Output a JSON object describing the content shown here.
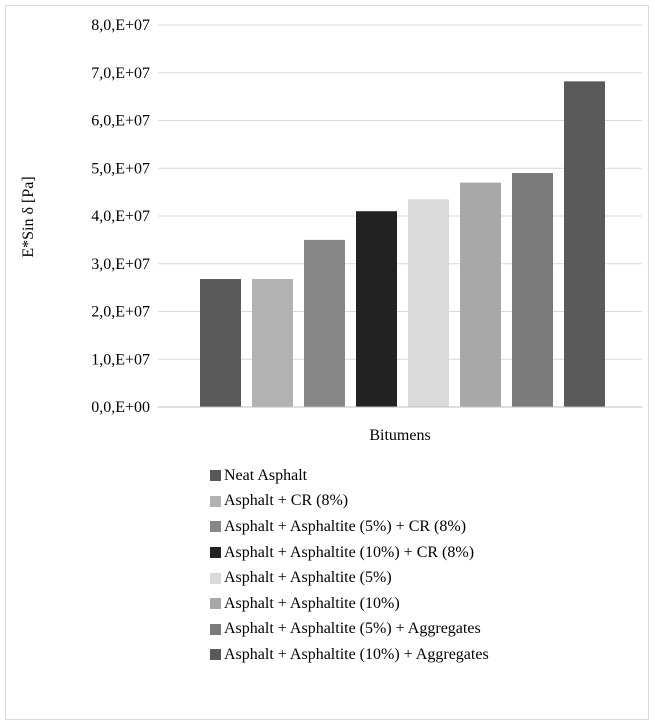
{
  "chart_data": {
    "type": "bar",
    "categories": [
      "Bitumens"
    ],
    "xlabel": "Bitumens",
    "ylabel": "E*Sin δ  [Pa]",
    "ylim": [
      0,
      80000000
    ],
    "yticks": [
      0,
      10000000,
      20000000,
      30000000,
      40000000,
      50000000,
      60000000,
      70000000,
      80000000
    ],
    "ytick_labels": [
      "0,0,E+00",
      "1,0,E+07",
      "2,0,E+07",
      "3,0,E+07",
      "4,0,E+07",
      "5,0,E+07",
      "6,0,E+07",
      "7,0,E+07",
      "8,0,E+07"
    ],
    "grid": true,
    "legend_position": "bottom",
    "series": [
      {
        "name": "Neat Asphalt",
        "values": [
          26800000
        ],
        "color": "#595959"
      },
      {
        "name": "Asphalt + CR (8%)",
        "values": [
          26800000
        ],
        "color": "#b2b2b2"
      },
      {
        "name": "Asphalt + Asphaltite (5%) + CR (8%)",
        "values": [
          35000000
        ],
        "color": "#878787"
      },
      {
        "name": "Asphalt + Asphaltite (10%) + CR (8%)",
        "values": [
          41000000
        ],
        "color": "#222222"
      },
      {
        "name": "Asphalt + Asphaltite (5%)",
        "values": [
          43500000
        ],
        "color": "#dadada"
      },
      {
        "name": "Asphalt + Asphaltite (10%)",
        "values": [
          47000000
        ],
        "color": "#a8a8a8"
      },
      {
        "name": "Asphalt + Asphaltite (5%) + Aggregates",
        "values": [
          49000000
        ],
        "color": "#7b7b7b"
      },
      {
        "name": "Asphalt + Asphaltite (10%) + Aggregates",
        "values": [
          68200000
        ],
        "color": "#5a5a5a"
      }
    ]
  }
}
